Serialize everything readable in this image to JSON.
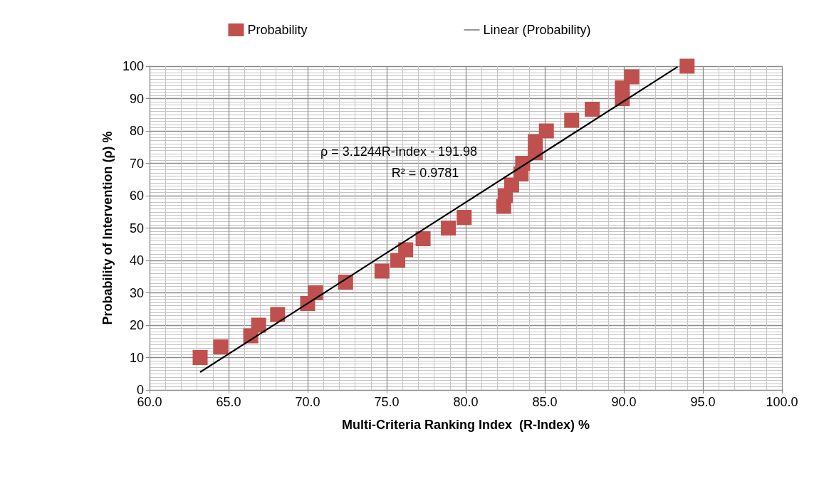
{
  "chart_data": {
    "type": "scatter",
    "xlabel": "Multi-Criteria Ranking Index  (R-Index) %",
    "ylabel": "Probability of Intervention (ρ) %",
    "x": [
      63.2,
      64.5,
      66.4,
      66.9,
      68.1,
      70.0,
      70.5,
      72.4,
      74.7,
      75.7,
      76.2,
      77.3,
      78.9,
      79.9,
      82.4,
      82.5,
      82.9,
      83.5,
      83.6,
      84.4,
      84.4,
      85.1,
      86.7,
      88.0,
      89.9,
      89.9,
      90.5,
      94.0
    ],
    "series": [
      {
        "name": "Probability",
        "color": "#c0504d",
        "marker": "square",
        "values": [
          10,
          13.3,
          16.7,
          20,
          23.3,
          26.7,
          30,
          33.3,
          36.7,
          40,
          43.3,
          46.7,
          50,
          53.3,
          56.7,
          60,
          63.3,
          66.7,
          70,
          73.3,
          76.7,
          80,
          83.3,
          86.7,
          90,
          93.3,
          96.7,
          100
        ]
      },
      {
        "name": "Linear (Probability)",
        "type": "line",
        "color": "#000000",
        "marker": "none",
        "line_style": "solid",
        "x": [
          63.2,
          93.4
        ],
        "values": [
          5.5,
          99.8
        ]
      }
    ],
    "xlim": [
      60,
      100
    ],
    "xticks": [
      {
        "value": 60,
        "label": "60.0"
      },
      {
        "value": 65,
        "label": "65.0"
      },
      {
        "value": 70,
        "label": "70.0"
      },
      {
        "value": 75,
        "label": "75.0"
      },
      {
        "value": 80,
        "label": "80.0"
      },
      {
        "value": 85,
        "label": "85.0"
      },
      {
        "value": 90,
        "label": "90.0"
      },
      {
        "value": 95,
        "label": "95.0"
      },
      {
        "value": 100,
        "label": "100.0"
      }
    ],
    "ylim": [
      0,
      100
    ],
    "yticks": [
      0,
      10,
      20,
      30,
      40,
      50,
      60,
      70,
      80,
      90,
      100
    ],
    "annotations": [
      "ρ = 3.1244R-Index - 191.98",
      "R² = 0.9781"
    ],
    "grid": true,
    "legend": "top"
  }
}
